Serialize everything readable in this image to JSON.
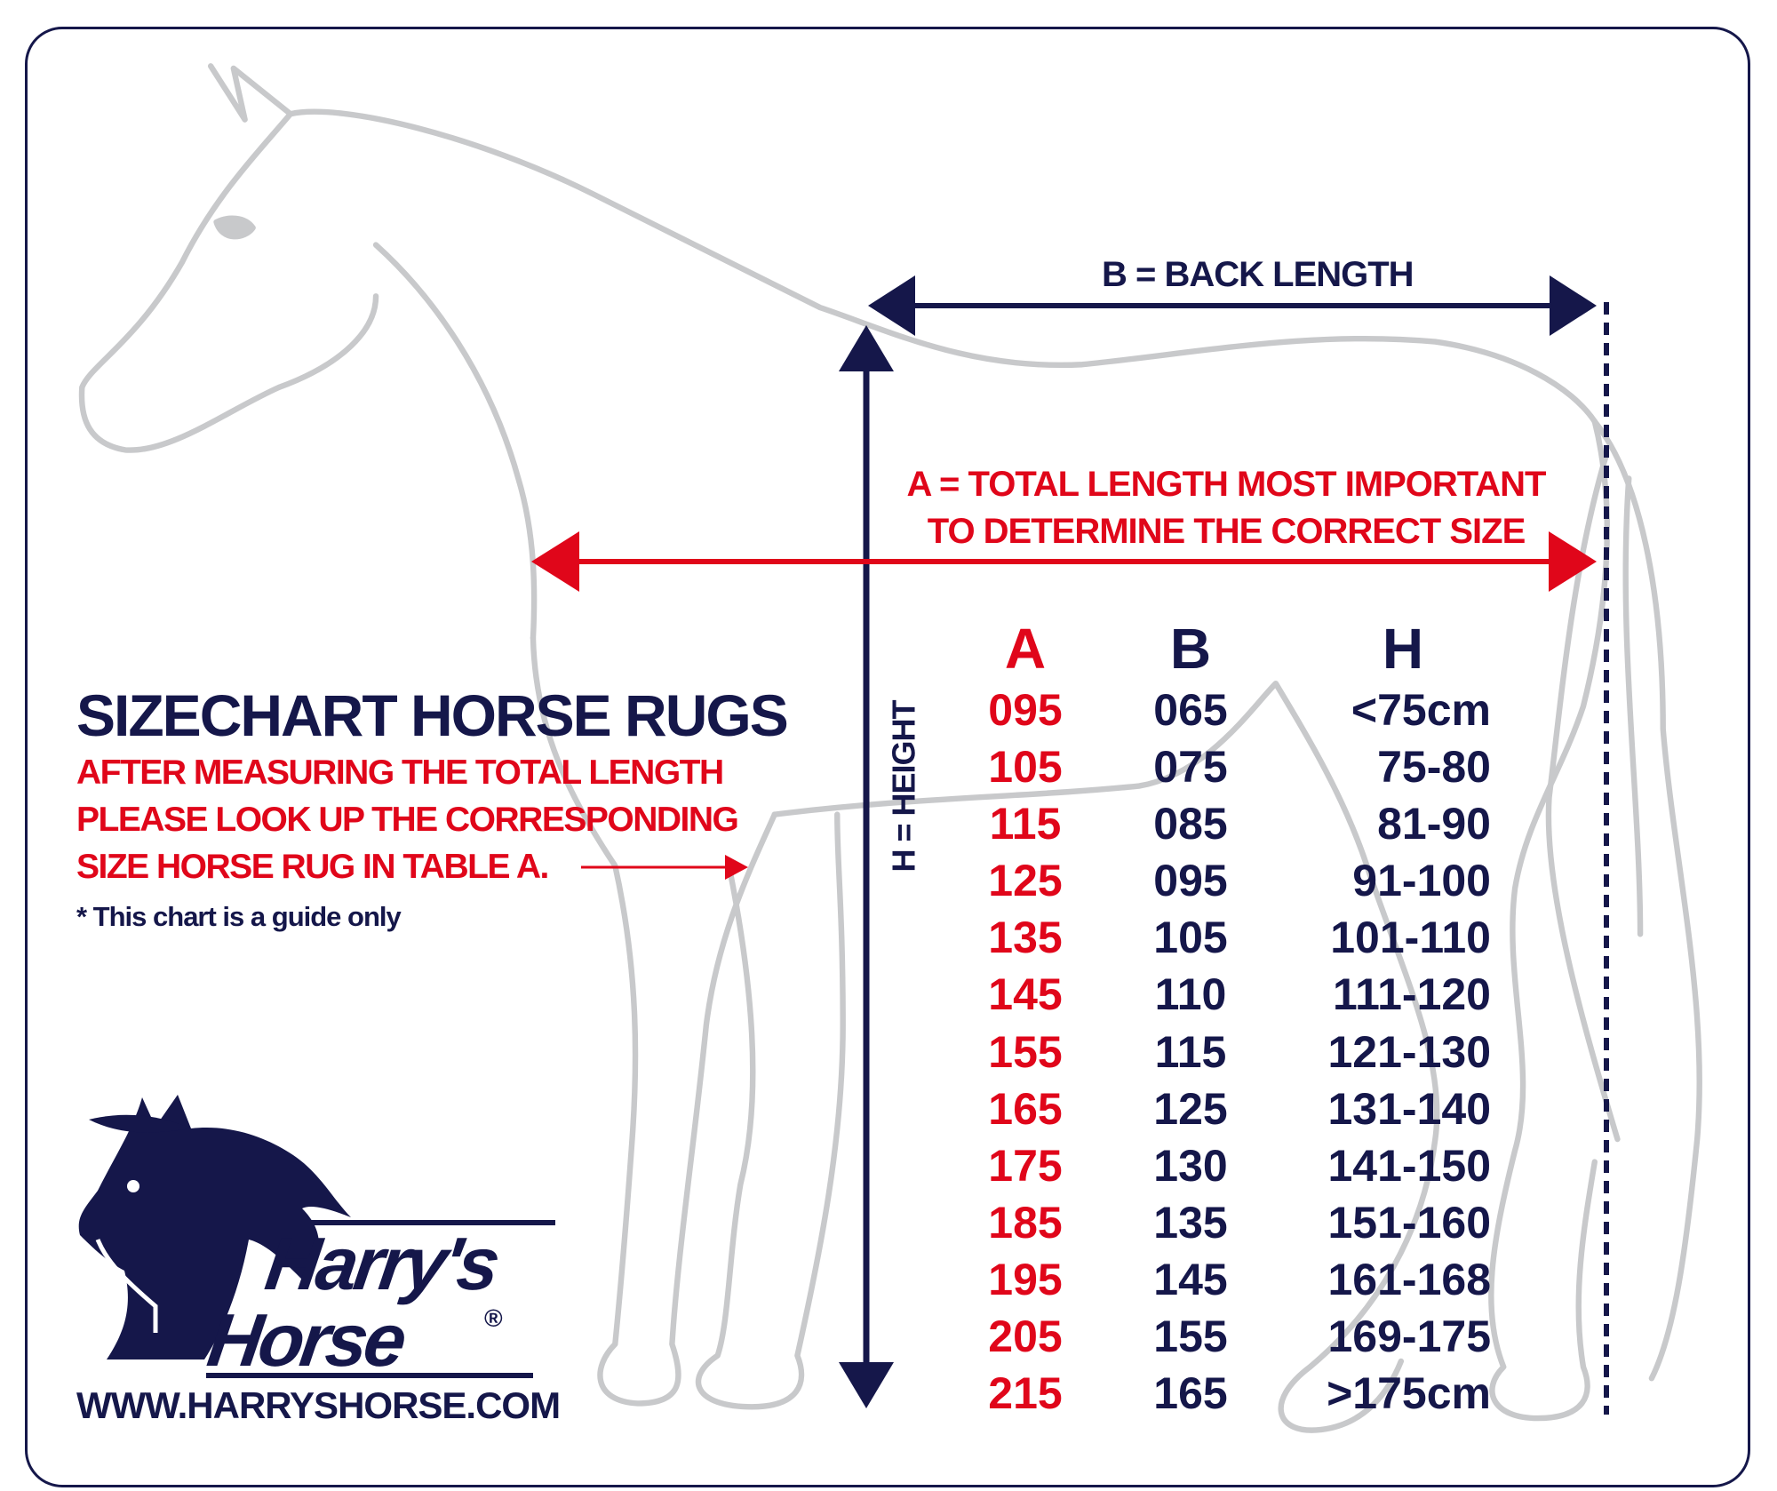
{
  "title": "SIZECHART HORSE RUGS",
  "instructions": [
    "AFTER MEASURING THE TOTAL LENGTH",
    "PLEASE LOOK UP THE CORRESPONDING",
    "SIZE HORSE RUG IN TABLE A."
  ],
  "note": "* This chart is a guide only",
  "website": "WWW.HARRYSHORSE.COM",
  "logo": {
    "line1": "Harry's",
    "line2": "Horse",
    "registered": "®"
  },
  "measurements": {
    "back_length": "B = BACK LENGTH",
    "total_length": [
      "A = TOTAL LENGTH MOST IMPORTANT",
      "TO DETERMINE THE CORRECT SIZE"
    ],
    "height": "H = HEIGHT"
  },
  "colors": {
    "navy": "#15174a",
    "red": "#e0061a",
    "outline": "#c8c9cb"
  },
  "icons": [
    "horse-outline-icon",
    "horse-head-logo-icon",
    "arrow-icon"
  ],
  "chart_data": {
    "type": "table",
    "columns": [
      "A",
      "B",
      "H"
    ],
    "rows": [
      [
        "095",
        "065",
        "<75cm"
      ],
      [
        "105",
        "075",
        "75-80"
      ],
      [
        "115",
        "085",
        "81-90"
      ],
      [
        "125",
        "095",
        "91-100"
      ],
      [
        "135",
        "105",
        "101-110"
      ],
      [
        "145",
        "110",
        "111-120"
      ],
      [
        "155",
        "115",
        "121-130"
      ],
      [
        "165",
        "125",
        "131-140"
      ],
      [
        "175",
        "130",
        "141-150"
      ],
      [
        "185",
        "135",
        "151-160"
      ],
      [
        "195",
        "145",
        "161-168"
      ],
      [
        "205",
        "155",
        "169-175"
      ],
      [
        "215",
        "165",
        ">175cm"
      ]
    ]
  }
}
